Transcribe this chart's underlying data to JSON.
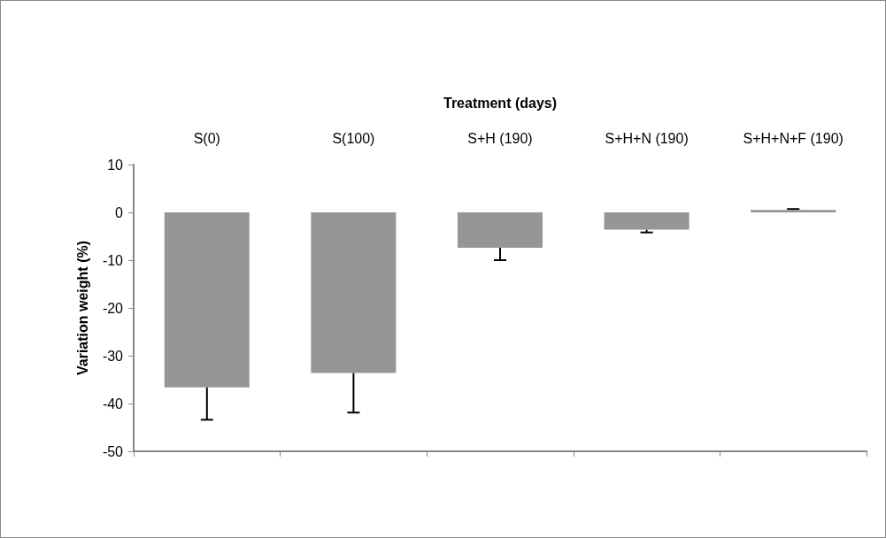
{
  "chart_data": {
    "type": "bar",
    "xlabel": "Treatment (days)",
    "ylabel": "Variation weight (%)",
    "categories": [
      "S(0)",
      "S(100)",
      "S+H (190)",
      "S+H+N (190)",
      "S+H+N+F (190)"
    ],
    "values": [
      -36.6,
      -33.6,
      -7.4,
      -3.6,
      0.5
    ],
    "errors": [
      [
        -43.4,
        -36.6
      ],
      [
        -41.9,
        -33.6
      ],
      [
        -10.0,
        -7.4
      ],
      [
        -4.2,
        -3.6
      ],
      [
        0.5,
        0.7
      ]
    ],
    "color": "#969696",
    "ylim": [
      -50,
      10
    ],
    "yticks": [
      -50,
      -40,
      -30,
      -20,
      -10,
      0,
      10
    ]
  }
}
